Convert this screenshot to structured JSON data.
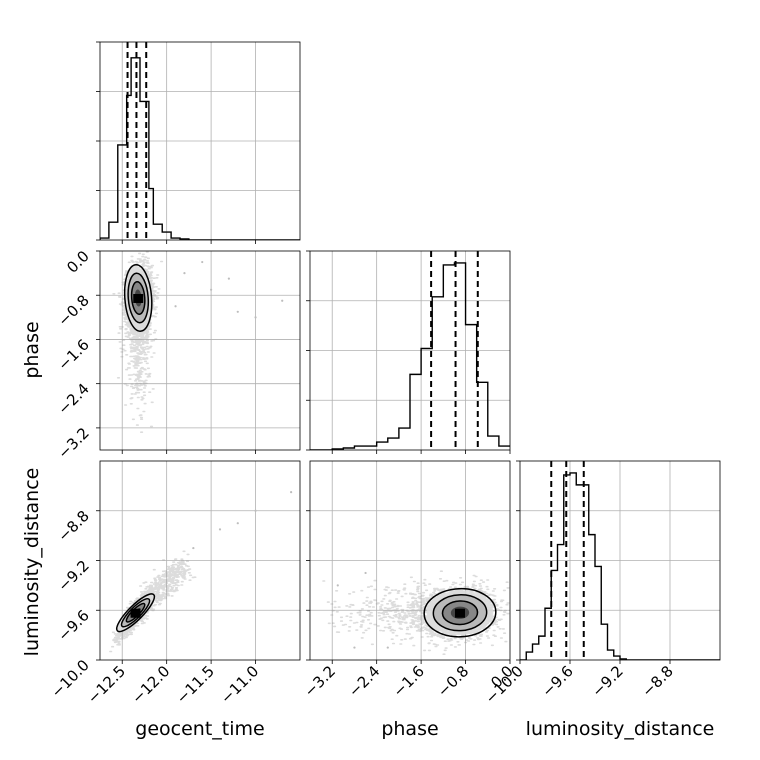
{
  "chart_data": {
    "type": "corner",
    "parameters": [
      "geocent_time",
      "phase",
      "luminosity_distance"
    ],
    "axis_labels": {
      "geocent_time": "geocent_time",
      "phase": "phase",
      "luminosity_distance": "luminosity_distance"
    },
    "ranges": {
      "geocent_time": [
        -12.75,
        -10.5
      ],
      "phase": [
        -3.6,
        0.0
      ],
      "luminosity_distance": [
        -10.0,
        -8.4
      ]
    },
    "ticks": {
      "geocent_time": [
        {
          "v": -12.5,
          "label": "−12.5"
        },
        {
          "v": -12.0,
          "label": "−12.0"
        },
        {
          "v": -11.5,
          "label": "−11.5"
        },
        {
          "v": -11.0,
          "label": "−11.0"
        }
      ],
      "phase": [
        {
          "v": -3.2,
          "label": "−3.2"
        },
        {
          "v": -2.4,
          "label": "−2.4"
        },
        {
          "v": -1.6,
          "label": "−1.6"
        },
        {
          "v": -0.8,
          "label": "−0.8"
        },
        {
          "v": 0.0,
          "label": "0.0"
        }
      ],
      "luminosity_distance": [
        {
          "v": -10.0,
          "label": "−10.0"
        },
        {
          "v": -9.6,
          "label": "−9.6"
        },
        {
          "v": -9.2,
          "label": "−9.2"
        },
        {
          "v": -8.8,
          "label": "−8.8"
        }
      ]
    },
    "histograms": {
      "geocent_time": {
        "bin_edges": [
          -12.75,
          -12.65,
          -12.55,
          -12.45,
          -12.4,
          -12.35,
          -12.3,
          -12.25,
          -12.2,
          -12.15,
          -12.05,
          -11.95,
          -11.85,
          -11.75,
          -11.65,
          -11.55,
          -11.45,
          -10.5
        ],
        "counts": [
          0.01,
          0.09,
          0.48,
          0.73,
          0.92,
          0.92,
          0.7,
          0.7,
          0.26,
          0.08,
          0.04,
          0.01,
          0.005,
          0.0,
          0.0,
          0.0,
          0.0
        ],
        "quantiles": [
          -12.44,
          -12.34,
          -12.23
        ]
      },
      "phase": {
        "bin_edges": [
          -3.6,
          -3.2,
          -3.0,
          -2.8,
          -2.6,
          -2.4,
          -2.2,
          -2.0,
          -1.8,
          -1.6,
          -1.4,
          -1.2,
          -1.0,
          -0.8,
          -0.6,
          -0.4,
          -0.2,
          0.0
        ],
        "counts": [
          0.0,
          0.005,
          0.01,
          0.02,
          0.02,
          0.04,
          0.06,
          0.11,
          0.38,
          0.51,
          0.77,
          0.93,
          0.94,
          0.63,
          0.34,
          0.07,
          0.02
        ],
        "quantiles": [
          -1.42,
          -0.98,
          -0.58
        ]
      },
      "luminosity_distance": {
        "bin_edges": [
          -10.0,
          -9.95,
          -9.9,
          -9.85,
          -9.8,
          -9.75,
          -9.7,
          -9.65,
          -9.6,
          -9.55,
          -9.5,
          -9.45,
          -9.4,
          -9.35,
          -9.3,
          -9.25,
          -9.2,
          -9.15,
          -9.1,
          -9.05,
          -8.4
        ],
        "counts": [
          0.0,
          0.04,
          0.08,
          0.12,
          0.26,
          0.45,
          0.58,
          0.93,
          0.94,
          0.88,
          0.88,
          0.63,
          0.47,
          0.18,
          0.05,
          0.02,
          0.005,
          0.0,
          0.0,
          0.0
        ],
        "quantiles": [
          -9.75,
          -9.63,
          -9.49
        ]
      }
    },
    "pairs": [
      {
        "x": "geocent_time",
        "y": "phase",
        "mean": [
          -12.32,
          -0.85
        ],
        "sd": [
          0.07,
          0.28
        ],
        "corr": 0.05,
        "tail": {
          "kind": "phase_tail",
          "y_min": -3.3
        },
        "outliers": [
          [
            -11.8,
            -0.4
          ],
          [
            -11.5,
            -0.7
          ],
          [
            -11.2,
            -1.1
          ],
          [
            -11.0,
            -1.2
          ],
          [
            -11.6,
            -0.2
          ],
          [
            -11.9,
            -1.0
          ],
          [
            -10.7,
            -0.9
          ],
          [
            -11.3,
            -0.5
          ]
        ],
        "levels": [
          0.45,
          0.75,
          1.15
        ]
      },
      {
        "x": "geocent_time",
        "y": "luminosity_distance",
        "mean": [
          -12.35,
          -9.62
        ],
        "sd": [
          0.08,
          0.08
        ],
        "corr": 0.9,
        "tail": {
          "kind": "diagonal"
        },
        "outliers": [
          [
            -11.4,
            -8.95
          ],
          [
            -11.0,
            -8.8
          ],
          [
            -10.6,
            -8.65
          ],
          [
            -11.2,
            -8.9
          ],
          [
            -11.7,
            -9.1
          ]
        ],
        "levels": [
          0.45,
          0.75,
          1.15
        ]
      },
      {
        "x": "phase",
        "y": "luminosity_distance",
        "mean": [
          -0.9,
          -9.62
        ],
        "sd": [
          0.3,
          0.09
        ],
        "corr": 0.1,
        "tail": {
          "kind": "x_left",
          "x_min": -3.4
        },
        "outliers": [
          [
            -2.8,
            -9.9
          ],
          [
            -3.1,
            -9.4
          ],
          [
            -2.2,
            -9.9
          ],
          [
            -2.6,
            -9.3
          ]
        ],
        "levels": [
          0.45,
          0.75,
          1.15
        ]
      }
    ],
    "grid": true,
    "legend": "none"
  }
}
